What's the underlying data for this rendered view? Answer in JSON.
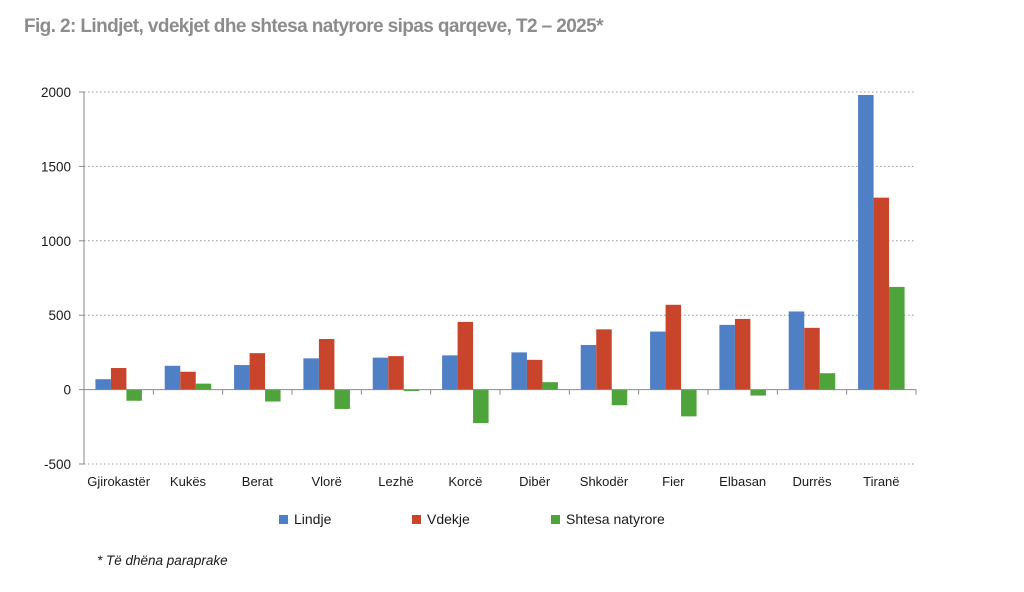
{
  "figure": {
    "title": "Fig. 2:  Lindjet, vdekjet dhe shtesa natyrore sipas qarqeve, T2 – 2025*",
    "footnote": "* Të dhëna paraprake"
  },
  "chart_data": {
    "type": "bar",
    "title": "Fig. 2:  Lindjet, vdekjet dhe shtesa natyrore sipas qarqeve, T2 – 2025*",
    "xlabel": "",
    "ylabel": "",
    "ylim": [
      -500,
      2000
    ],
    "yticks": [
      -500,
      0,
      500,
      1000,
      1500,
      2000
    ],
    "grid": "horizontal dotted",
    "legend_position": "bottom",
    "categories": [
      "Gjirokastër",
      "Kukës",
      "Berat",
      "Vlorë",
      "Lezhë",
      "Korcë",
      "Dibër",
      "Shkodër",
      "Fier",
      "Elbasan",
      "Durrës",
      "Tiranë"
    ],
    "series": [
      {
        "name": "Lindje",
        "color": "#4f7fc4",
        "values": [
          70,
          160,
          165,
          210,
          215,
          230,
          250,
          300,
          390,
          435,
          525,
          1980
        ]
      },
      {
        "name": "Vdekje",
        "color": "#c8452b",
        "values": [
          145,
          120,
          245,
          340,
          225,
          455,
          200,
          405,
          570,
          475,
          415,
          1290
        ]
      },
      {
        "name": "Shtesa natyrore",
        "color": "#4ea33a",
        "values": [
          -75,
          40,
          -80,
          -130,
          -10,
          -225,
          50,
          -105,
          -180,
          -40,
          110,
          690
        ]
      }
    ]
  }
}
